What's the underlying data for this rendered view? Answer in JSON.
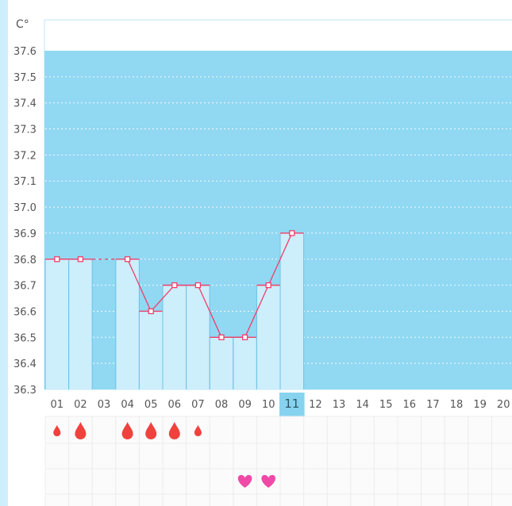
{
  "chart_data": {
    "type": "bar",
    "unit": "C°",
    "y_ticks": [
      "37.6",
      "37.5",
      "37.4",
      "37.3",
      "37.2",
      "37.1",
      "37.0",
      "36.9",
      "36.8",
      "36.7",
      "36.6",
      "36.5",
      "36.4",
      "36.3"
    ],
    "ylim": [
      36.3,
      37.6
    ],
    "grid": true,
    "categories": [
      "01",
      "02",
      "03",
      "04",
      "05",
      "06",
      "07",
      "08",
      "09",
      "10",
      "11",
      "12",
      "13",
      "14",
      "15",
      "16",
      "17",
      "18",
      "19",
      "20"
    ],
    "highlighted_category": "11",
    "series": [
      {
        "values": [
          36.8,
          36.8,
          null,
          36.8,
          36.6,
          36.7,
          36.7,
          36.5,
          36.5,
          36.7,
          36.9,
          null,
          null,
          null,
          null,
          null,
          null,
          null,
          null,
          null
        ]
      }
    ],
    "dashed_segments": [
      [
        2,
        4
      ]
    ],
    "period_flow": [
      1,
      2,
      0,
      2,
      2,
      2,
      1,
      0,
      0,
      0,
      0,
      0,
      0,
      0,
      0,
      0,
      0,
      0,
      0,
      0
    ],
    "heart_days": [
      "09",
      "10"
    ]
  },
  "colors": {
    "plot_bg": "#91d8f2",
    "bar": "#cdeefb",
    "bar_edge": "#6fc4e8",
    "line": "#ef3f6a",
    "drop": "#f0423d",
    "heart": "#f04aa8",
    "axis_text": "#555555",
    "highlight": "#87d3ef"
  }
}
